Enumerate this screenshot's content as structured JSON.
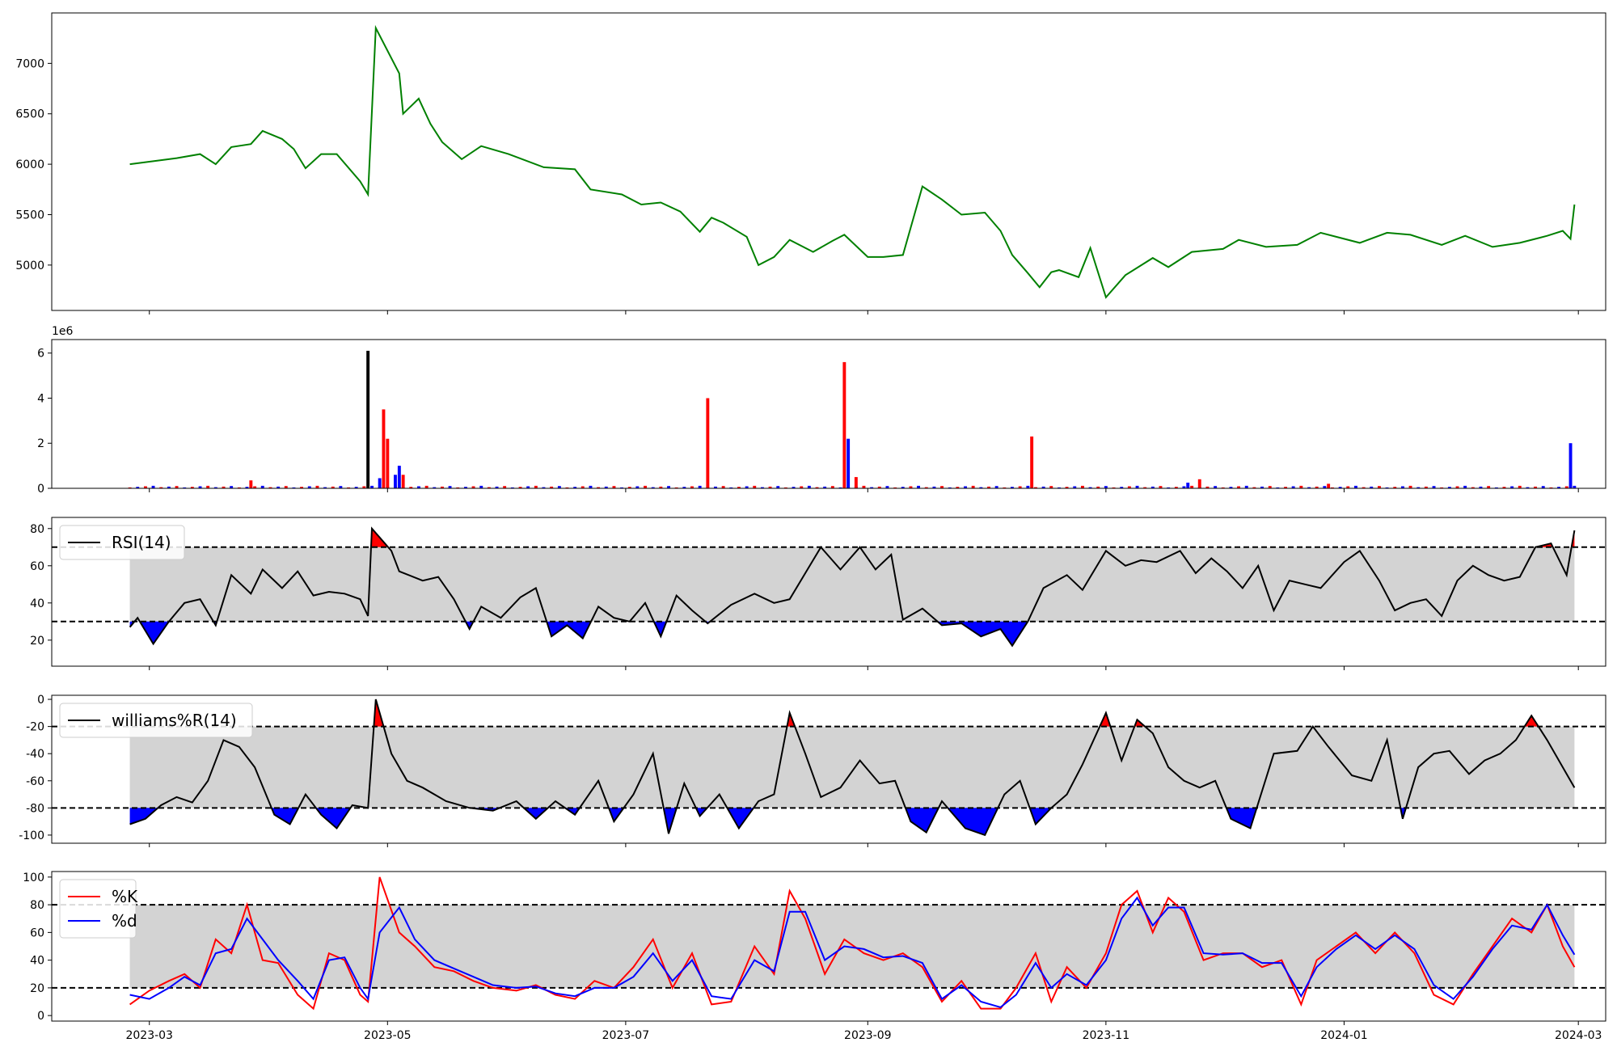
{
  "chart_data": [
    {
      "type": "line",
      "panel": "price",
      "ylim": [
        4550,
        7500
      ],
      "yticks": [
        5000,
        5500,
        6000,
        6500,
        7000
      ],
      "color": "#008000",
      "x": [
        "2023-02-24",
        "2023-03-02",
        "2023-03-08",
        "2023-03-14",
        "2023-03-18",
        "2023-03-22",
        "2023-03-27",
        "2023-03-30",
        "2023-04-04",
        "2023-04-07",
        "2023-04-10",
        "2023-04-14",
        "2023-04-18",
        "2023-04-24",
        "2023-04-26",
        "2023-04-28",
        "2023-05-04",
        "2023-05-05",
        "2023-05-09",
        "2023-05-12",
        "2023-05-15",
        "2023-05-20",
        "2023-05-25",
        "2023-06-01",
        "2023-06-10",
        "2023-06-18",
        "2023-06-22",
        "2023-06-30",
        "2023-07-05",
        "2023-07-10",
        "2023-07-15",
        "2023-07-20",
        "2023-07-23",
        "2023-07-26",
        "2023-08-01",
        "2023-08-04",
        "2023-08-08",
        "2023-08-12",
        "2023-08-18",
        "2023-08-23",
        "2023-08-26",
        "2023-09-01",
        "2023-09-05",
        "2023-09-10",
        "2023-09-15",
        "2023-09-20",
        "2023-09-25",
        "2023-10-01",
        "2023-10-05",
        "2023-10-08",
        "2023-10-12",
        "2023-10-15",
        "2023-10-18",
        "2023-10-20",
        "2023-10-25",
        "2023-10-28",
        "2023-11-01",
        "2023-11-06",
        "2023-11-13",
        "2023-11-17",
        "2023-11-23",
        "2023-12-01",
        "2023-12-05",
        "2023-12-12",
        "2023-12-20",
        "2023-12-26",
        "2024-01-05",
        "2024-01-12",
        "2024-01-18",
        "2024-01-26",
        "2024-02-01",
        "2024-02-08",
        "2024-02-15",
        "2024-02-22",
        "2024-02-26",
        "2024-02-28",
        "2024-02-29"
      ],
      "values": [
        6000,
        6030,
        6060,
        6100,
        6000,
        6170,
        6200,
        6330,
        6250,
        6150,
        5960,
        6100,
        6100,
        5830,
        5700,
        7350,
        6900,
        6500,
        6650,
        6400,
        6220,
        6050,
        6180,
        6100,
        5970,
        5950,
        5750,
        5700,
        5600,
        5620,
        5530,
        5330,
        5470,
        5420,
        5280,
        5000,
        5080,
        5250,
        5130,
        5240,
        5300,
        5080,
        5080,
        5100,
        5780,
        5650,
        5500,
        5520,
        5340,
        5100,
        4920,
        4780,
        4930,
        4950,
        4880,
        5170,
        4680,
        4900,
        5070,
        4980,
        5130,
        5160,
        5250,
        5180,
        5200,
        5320,
        5220,
        5320,
        5300,
        5200,
        5290,
        5180,
        5220,
        5290,
        5340,
        5260,
        5600
      ]
    },
    {
      "type": "bar",
      "panel": "volume",
      "offset_label": "1e6",
      "ylim": [
        0,
        6.6
      ],
      "yticks": [
        0,
        2,
        4,
        6
      ],
      "x": [
        "2023-04-26",
        "2023-04-29",
        "2023-04-30",
        "2023-05-01",
        "2023-05-03",
        "2023-05-04",
        "2023-05-05",
        "2023-03-27",
        "2023-07-22",
        "2023-08-26",
        "2023-08-27",
        "2023-10-13",
        "2023-11-25",
        "2023-11-22",
        "2023-12-28",
        "2024-02-28",
        "2023-08-29"
      ],
      "values": [
        6.1,
        0.45,
        3.5,
        2.2,
        0.6,
        1.0,
        0.6,
        0.35,
        4.0,
        5.6,
        2.2,
        2.3,
        0.4,
        0.25,
        0.2,
        2.0,
        0.5
      ],
      "colors": [
        "#000000",
        "#0000ff",
        "#ff0000",
        "#ff0000",
        "#0000ff",
        "#0000ff",
        "#ff0000",
        "#ff0000",
        "#ff0000",
        "#ff0000",
        "#0000ff",
        "#ff0000",
        "#ff0000",
        "#0000ff",
        "#ff0000",
        "#0000ff",
        "#ff0000"
      ]
    },
    {
      "type": "line",
      "panel": "rsi",
      "legend": "RSI(14)",
      "ylim": [
        6,
        86
      ],
      "yticks": [
        20,
        40,
        60,
        80
      ],
      "upper": 70,
      "lower": 30,
      "x": [
        "2023-02-24",
        "2023-02-26",
        "2023-03-02",
        "2023-03-06",
        "2023-03-10",
        "2023-03-14",
        "2023-03-18",
        "2023-03-22",
        "2023-03-27",
        "2023-03-30",
        "2023-04-04",
        "2023-04-08",
        "2023-04-12",
        "2023-04-16",
        "2023-04-20",
        "2023-04-24",
        "2023-04-26",
        "2023-04-27",
        "2023-05-02",
        "2023-05-04",
        "2023-05-10",
        "2023-05-14",
        "2023-05-18",
        "2023-05-22",
        "2023-05-25",
        "2023-05-30",
        "2023-06-04",
        "2023-06-08",
        "2023-06-12",
        "2023-06-16",
        "2023-06-20",
        "2023-06-24",
        "2023-06-28",
        "2023-07-02",
        "2023-07-06",
        "2023-07-10",
        "2023-07-14",
        "2023-07-18",
        "2023-07-22",
        "2023-07-28",
        "2023-08-03",
        "2023-08-08",
        "2023-08-12",
        "2023-08-16",
        "2023-08-20",
        "2023-08-25",
        "2023-08-30",
        "2023-09-03",
        "2023-09-07",
        "2023-09-10",
        "2023-09-15",
        "2023-09-20",
        "2023-09-25",
        "2023-09-30",
        "2023-10-05",
        "2023-10-08",
        "2023-10-12",
        "2023-10-16",
        "2023-10-22",
        "2023-10-26",
        "2023-11-01",
        "2023-11-06",
        "2023-11-10",
        "2023-11-14",
        "2023-11-20",
        "2023-11-24",
        "2023-11-28",
        "2023-12-02",
        "2023-12-06",
        "2023-12-10",
        "2023-12-14",
        "2023-12-18",
        "2023-12-22",
        "2023-12-26",
        "2024-01-01",
        "2024-01-05",
        "2024-01-10",
        "2024-01-14",
        "2024-01-18",
        "2024-01-22",
        "2024-01-26",
        "2024-01-30",
        "2024-02-03",
        "2024-02-07",
        "2024-02-11",
        "2024-02-15",
        "2024-02-19",
        "2024-02-23",
        "2024-02-27",
        "2024-02-29"
      ],
      "values": [
        27,
        32,
        18,
        30,
        40,
        42,
        28,
        55,
        45,
        58,
        48,
        57,
        44,
        46,
        45,
        42,
        33,
        80,
        68,
        57,
        52,
        54,
        42,
        26,
        38,
        32,
        43,
        48,
        22,
        28,
        21,
        38,
        32,
        30,
        40,
        22,
        44,
        36,
        29,
        39,
        45,
        40,
        42,
        56,
        70,
        58,
        70,
        58,
        66,
        31,
        37,
        28,
        29,
        22,
        26,
        17,
        30,
        48,
        55,
        47,
        68,
        60,
        63,
        62,
        68,
        56,
        64,
        57,
        48,
        60,
        36,
        52,
        50,
        48,
        62,
        68,
        52,
        36,
        40,
        42,
        33,
        52,
        60,
        55,
        52,
        54,
        70,
        72,
        55,
        79
      ]
    },
    {
      "type": "line",
      "panel": "williams",
      "legend": "williams%R(14)",
      "ylim": [
        -106,
        3
      ],
      "yticks": [
        -100,
        -80,
        -60,
        -40,
        -20,
        0
      ],
      "upper": -20,
      "lower": -80,
      "x": [
        "2023-02-24",
        "2023-02-28",
        "2023-03-04",
        "2023-03-08",
        "2023-03-12",
        "2023-03-16",
        "2023-03-20",
        "2023-03-24",
        "2023-03-28",
        "2023-04-02",
        "2023-04-06",
        "2023-04-10",
        "2023-04-14",
        "2023-04-18",
        "2023-04-22",
        "2023-04-26",
        "2023-04-28",
        "2023-05-02",
        "2023-05-06",
        "2023-05-10",
        "2023-05-16",
        "2023-05-22",
        "2023-05-28",
        "2023-06-03",
        "2023-06-08",
        "2023-06-13",
        "2023-06-18",
        "2023-06-24",
        "2023-06-28",
        "2023-07-03",
        "2023-07-08",
        "2023-07-12",
        "2023-07-16",
        "2023-07-20",
        "2023-07-25",
        "2023-07-30",
        "2023-08-04",
        "2023-08-08",
        "2023-08-12",
        "2023-08-16",
        "2023-08-20",
        "2023-08-25",
        "2023-08-30",
        "2023-09-04",
        "2023-09-08",
        "2023-09-12",
        "2023-09-16",
        "2023-09-20",
        "2023-09-26",
        "2023-10-01",
        "2023-10-06",
        "2023-10-10",
        "2023-10-14",
        "2023-10-18",
        "2023-10-22",
        "2023-10-26",
        "2023-11-01",
        "2023-11-05",
        "2023-11-09",
        "2023-11-13",
        "2023-11-17",
        "2023-11-21",
        "2023-11-25",
        "2023-11-29",
        "2023-12-03",
        "2023-12-08",
        "2023-12-14",
        "2023-12-20",
        "2023-12-24",
        "2023-12-28",
        "2024-01-03",
        "2024-01-08",
        "2024-01-12",
        "2024-01-16",
        "2024-01-20",
        "2024-01-24",
        "2024-01-28",
        "2024-02-02",
        "2024-02-06",
        "2024-02-10",
        "2024-02-14",
        "2024-02-18",
        "2024-02-22",
        "2024-02-26",
        "2024-02-29"
      ],
      "values": [
        -92,
        -88,
        -78,
        -72,
        -76,
        -60,
        -30,
        -35,
        -50,
        -85,
        -92,
        -70,
        -85,
        -95,
        -78,
        -80,
        0,
        -40,
        -60,
        -65,
        -75,
        -80,
        -82,
        -75,
        -88,
        -75,
        -85,
        -60,
        -90,
        -70,
        -40,
        -99,
        -62,
        -86,
        -70,
        -95,
        -75,
        -70,
        -10,
        -40,
        -72,
        -65,
        -45,
        -62,
        -60,
        -90,
        -98,
        -75,
        -95,
        -100,
        -70,
        -60,
        -92,
        -80,
        -70,
        -48,
        -10,
        -45,
        -15,
        -25,
        -50,
        -60,
        -65,
        -60,
        -88,
        -95,
        -40,
        -38,
        -20,
        -35,
        -56,
        -60,
        -30,
        -88,
        -50,
        -40,
        -38,
        -55,
        -45,
        -40,
        -30,
        -12,
        -30,
        -50,
        -65
      ]
    },
    {
      "type": "line",
      "panel": "stochastic",
      "ylim": [
        -4,
        104
      ],
      "yticks": [
        0,
        20,
        40,
        60,
        80,
        100
      ],
      "upper": 80,
      "lower": 20,
      "x": [
        "2023-02-24",
        "2023-03-01",
        "2023-03-06",
        "2023-03-10",
        "2023-03-14",
        "2023-03-18",
        "2023-03-22",
        "2023-03-26",
        "2023-03-30",
        "2023-04-03",
        "2023-04-08",
        "2023-04-12",
        "2023-04-16",
        "2023-04-20",
        "2023-04-24",
        "2023-04-26",
        "2023-04-29",
        "2023-05-04",
        "2023-05-08",
        "2023-05-13",
        "2023-05-18",
        "2023-05-23",
        "2023-05-28",
        "2023-06-03",
        "2023-06-08",
        "2023-06-13",
        "2023-06-18",
        "2023-06-23",
        "2023-06-28",
        "2023-07-03",
        "2023-07-08",
        "2023-07-13",
        "2023-07-18",
        "2023-07-23",
        "2023-07-28",
        "2023-08-03",
        "2023-08-08",
        "2023-08-12",
        "2023-08-16",
        "2023-08-21",
        "2023-08-26",
        "2023-08-31",
        "2023-09-05",
        "2023-09-10",
        "2023-09-15",
        "2023-09-20",
        "2023-09-25",
        "2023-09-30",
        "2023-10-05",
        "2023-10-09",
        "2023-10-14",
        "2023-10-18",
        "2023-10-22",
        "2023-10-27",
        "2023-11-01",
        "2023-11-05",
        "2023-11-09",
        "2023-11-13",
        "2023-11-17",
        "2023-11-21",
        "2023-11-26",
        "2023-12-01",
        "2023-12-06",
        "2023-12-11",
        "2023-12-16",
        "2023-12-21",
        "2023-12-25",
        "2023-12-30",
        "2024-01-04",
        "2024-01-09",
        "2024-01-14",
        "2024-01-19",
        "2024-01-24",
        "2024-01-29",
        "2024-02-03",
        "2024-02-08",
        "2024-02-13",
        "2024-02-18",
        "2024-02-22",
        "2024-02-26",
        "2024-02-29"
      ],
      "series": [
        {
          "name": "%K",
          "color": "#ff0000",
          "values": [
            8,
            18,
            25,
            30,
            20,
            55,
            45,
            80,
            40,
            38,
            15,
            5,
            45,
            40,
            15,
            10,
            100,
            60,
            50,
            35,
            32,
            25,
            20,
            18,
            22,
            15,
            12,
            25,
            20,
            35,
            55,
            20,
            45,
            8,
            10,
            50,
            30,
            90,
            70,
            30,
            55,
            45,
            40,
            45,
            35,
            10,
            25,
            5,
            5,
            20,
            45,
            10,
            35,
            20,
            45,
            80,
            90,
            60,
            85,
            75,
            40,
            45,
            45,
            35,
            40,
            8,
            40,
            50,
            60,
            45,
            60,
            45,
            15,
            8,
            30,
            50,
            70,
            60,
            80,
            50,
            35
          ]
        },
        {
          "name": "%d",
          "color": "#0000ff",
          "values": [
            15,
            12,
            20,
            28,
            22,
            45,
            48,
            70,
            55,
            40,
            25,
            12,
            40,
            42,
            20,
            12,
            60,
            78,
            55,
            40,
            34,
            28,
            22,
            20,
            21,
            16,
            14,
            20,
            20,
            28,
            45,
            25,
            40,
            14,
            12,
            40,
            32,
            75,
            75,
            40,
            50,
            48,
            42,
            43,
            38,
            12,
            22,
            10,
            6,
            15,
            38,
            20,
            30,
            22,
            40,
            70,
            85,
            65,
            78,
            78,
            45,
            44,
            45,
            38,
            38,
            14,
            35,
            48,
            58,
            48,
            58,
            48,
            22,
            12,
            28,
            48,
            65,
            62,
            80,
            58,
            44
          ]
        }
      ]
    }
  ],
  "x_axis": {
    "start": "2023-02-04",
    "end": "2024-03-08",
    "ticks": [
      {
        "date": "2023-03-01",
        "label": "2023-03"
      },
      {
        "date": "2023-05-01",
        "label": "2023-05"
      },
      {
        "date": "2023-07-01",
        "label": "2023-07"
      },
      {
        "date": "2023-09-01",
        "label": "2023-09"
      },
      {
        "date": "2023-11-01",
        "label": "2023-11"
      },
      {
        "date": "2024-01-01",
        "label": "2024-01"
      },
      {
        "date": "2024-03-01",
        "label": "2024-03"
      }
    ]
  },
  "colors": {
    "band": "#d3d3d3",
    "overbought": "#ff0000",
    "oversold": "#0000ff",
    "line": "#000000"
  }
}
